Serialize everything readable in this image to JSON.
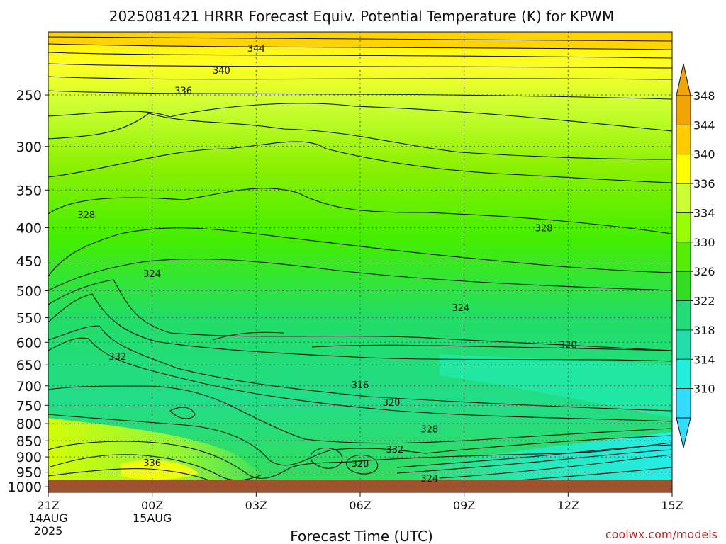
{
  "chart_data": {
    "type": "contour",
    "title": "2025081421 HRRR Forecast Equiv. Potential Temperature (K) for KPWM",
    "xlabel": "Forecast Time (UTC)",
    "ylabel": "",
    "credit": "coolwx.com/models",
    "x_ticks": [
      {
        "label": "21Z",
        "sub": [
          "14AUG",
          "2025"
        ],
        "hour": 0
      },
      {
        "label": "00Z",
        "sub": [
          "15AUG"
        ],
        "hour": 3
      },
      {
        "label": "03Z",
        "sub": [],
        "hour": 6
      },
      {
        "label": "06Z",
        "sub": [],
        "hour": 9
      },
      {
        "label": "09Z",
        "sub": [],
        "hour": 12
      },
      {
        "label": "12Z",
        "sub": [],
        "hour": 15
      },
      {
        "label": "15Z",
        "sub": [],
        "hour": 18
      }
    ],
    "xlim": [
      0,
      18
    ],
    "y_ticks": [
      250,
      300,
      350,
      400,
      450,
      500,
      550,
      600,
      650,
      700,
      750,
      800,
      850,
      900,
      950,
      1000
    ],
    "ylim": [
      1020,
      200
    ],
    "y_scale": "log",
    "grid": true,
    "colorbar": {
      "labels": [
        348,
        344,
        340,
        336,
        334,
        330,
        326,
        322,
        318,
        314,
        310
      ],
      "colors": [
        "#f2a400",
        "#ffcc00",
        "#ffff00",
        "#ccff33",
        "#99ff00",
        "#55ee00",
        "#33dd22",
        "#22dd77",
        "#22ddaa",
        "#22eedd",
        "#33ddff"
      ],
      "extend": "both"
    },
    "colors": {
      "ground": "#a0522d",
      "contour": "#111111",
      "grid": "#555555"
    },
    "contour_labels": [
      {
        "value": "344",
        "hour": 6.0,
        "p": 212
      },
      {
        "value": "340",
        "hour": 5.0,
        "p": 229
      },
      {
        "value": "336",
        "hour": 3.9,
        "p": 246
      },
      {
        "value": "328",
        "hour": 1.1,
        "p": 382
      },
      {
        "value": "328",
        "hour": 14.3,
        "p": 400
      },
      {
        "value": "324",
        "hour": 3.0,
        "p": 470
      },
      {
        "value": "324",
        "hour": 11.9,
        "p": 530
      },
      {
        "value": "320",
        "hour": 15.0,
        "p": 605
      },
      {
        "value": "332",
        "hour": 2.0,
        "p": 630
      },
      {
        "value": "316",
        "hour": 9.0,
        "p": 697
      },
      {
        "value": "320",
        "hour": 9.9,
        "p": 742
      },
      {
        "value": "328",
        "hour": 11.0,
        "p": 815
      },
      {
        "value": "332",
        "hour": 10.0,
        "p": 875
      },
      {
        "value": "336",
        "hour": 3.0,
        "p": 918
      },
      {
        "value": "328",
        "hour": 9.0,
        "p": 920
      },
      {
        "value": "324",
        "hour": 11.0,
        "p": 970
      }
    ]
  }
}
